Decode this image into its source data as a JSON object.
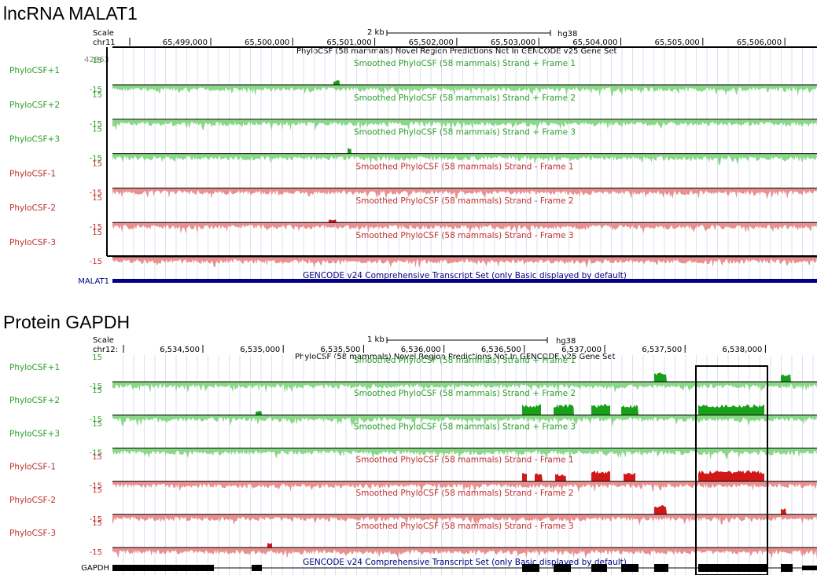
{
  "panels": [
    {
      "title": "lncRNA MALAT1",
      "scale_label": "Scale",
      "chrom_label": "chr11",
      "scalebar_text": "2 kb",
      "assembly": "hg38",
      "ruler_ticks": [
        "65,499,000",
        "65,500,000",
        "65,501,000",
        "65,502,000",
        "65,503,000",
        "65,504,000",
        "65,505,000",
        "65,506,000"
      ],
      "novel_track_title": "PhyloCSF (58 mammals) Novel Region Predictions Not In GENCODE v25 Gene Set",
      "novel_value": "42863",
      "tracks": [
        {
          "name": "PhyloCSF+1",
          "title": "Smoothed PhyloCSF (58 mammals)  Strand +  Frame 1",
          "color": "#2aa02a",
          "max": "15",
          "min": "-15"
        },
        {
          "name": "PhyloCSF+2",
          "title": "Smoothed PhyloCSF (58 mammals)  Strand +  Frame 2",
          "color": "#2aa02a",
          "max": "15",
          "min": "-15"
        },
        {
          "name": "PhyloCSF+3",
          "title": "Smoothed PhyloCSF (58 mammals)  Strand +  Frame 3",
          "color": "#2aa02a",
          "max": "15",
          "min": "-15"
        },
        {
          "name": "PhyloCSF-1",
          "title": "Smoothed PhyloCSF (58 mammals)  Strand -  Frame 1",
          "color": "#c03030",
          "max": "15",
          "min": "-15"
        },
        {
          "name": "PhyloCSF-2",
          "title": "Smoothed PhyloCSF (58 mammals)  Strand -  Frame 2",
          "color": "#c03030",
          "max": "15",
          "min": "-15"
        },
        {
          "name": "PhyloCSF-3",
          "title": "Smoothed PhyloCSF (58 mammals)  Strand -  Frame 3",
          "color": "#c03030",
          "max": "15",
          "min": "-15"
        }
      ],
      "gene_name": "MALAT1",
      "gene_track_title": "GENCODE v24 Comprehensive Transcript Set (only Basic displayed by default)"
    },
    {
      "title": "Protein GAPDH",
      "scale_label": "Scale",
      "chrom_label": "chr12:",
      "scalebar_text": "1 kb",
      "assembly": "hg38",
      "ruler_ticks": [
        "6,534,500",
        "6,535,000",
        "6,535,500",
        "6,536,000",
        "6,536,500",
        "6,537,000",
        "6,537,500",
        "6,538,000"
      ],
      "novel_track_title": "PhyloCSF (58 mammals) Novel Region Predictions Not In GENCODE v25 Gene Set",
      "tracks": [
        {
          "name": "PhyloCSF+1",
          "title": "Smoothed PhyloCSF (58 mammals)  Strand +  Frame 1",
          "color": "#2aa02a",
          "max": "15",
          "min": "-15"
        },
        {
          "name": "PhyloCSF+2",
          "title": "Smoothed PhyloCSF (58 mammals)  Strand +  Frame 2",
          "color": "#2aa02a",
          "max": "15",
          "min": "-15"
        },
        {
          "name": "PhyloCSF+3",
          "title": "Smoothed PhyloCSF (58 mammals)  Strand +  Frame 3",
          "color": "#2aa02a",
          "max": "15",
          "min": "-15"
        },
        {
          "name": "PhyloCSF-1",
          "title": "Smoothed PhyloCSF (58 mammals)  Strand -  Frame 1",
          "color": "#c03030",
          "max": "15",
          "min": "-15"
        },
        {
          "name": "PhyloCSF-2",
          "title": "Smoothed PhyloCSF (58 mammals)  Strand -  Frame 2",
          "color": "#c03030",
          "max": "15",
          "min": "-15"
        },
        {
          "name": "PhyloCSF-3",
          "title": "Smoothed PhyloCSF (58 mammals)  Strand -  Frame 3",
          "color": "#c03030",
          "max": "15",
          "min": "-15"
        }
      ],
      "gene_name": "GAPDH",
      "gene_track_title": "GENCODE v24 Comprehensive Transcript Set (only Basic displayed by default)"
    }
  ],
  "colors": {
    "green_fill": "#88d888",
    "green_dark": "#18a018",
    "red_fill": "#e89090",
    "red_dark": "#d01818",
    "gene_navy": "#000080",
    "gene_black": "#000000"
  }
}
